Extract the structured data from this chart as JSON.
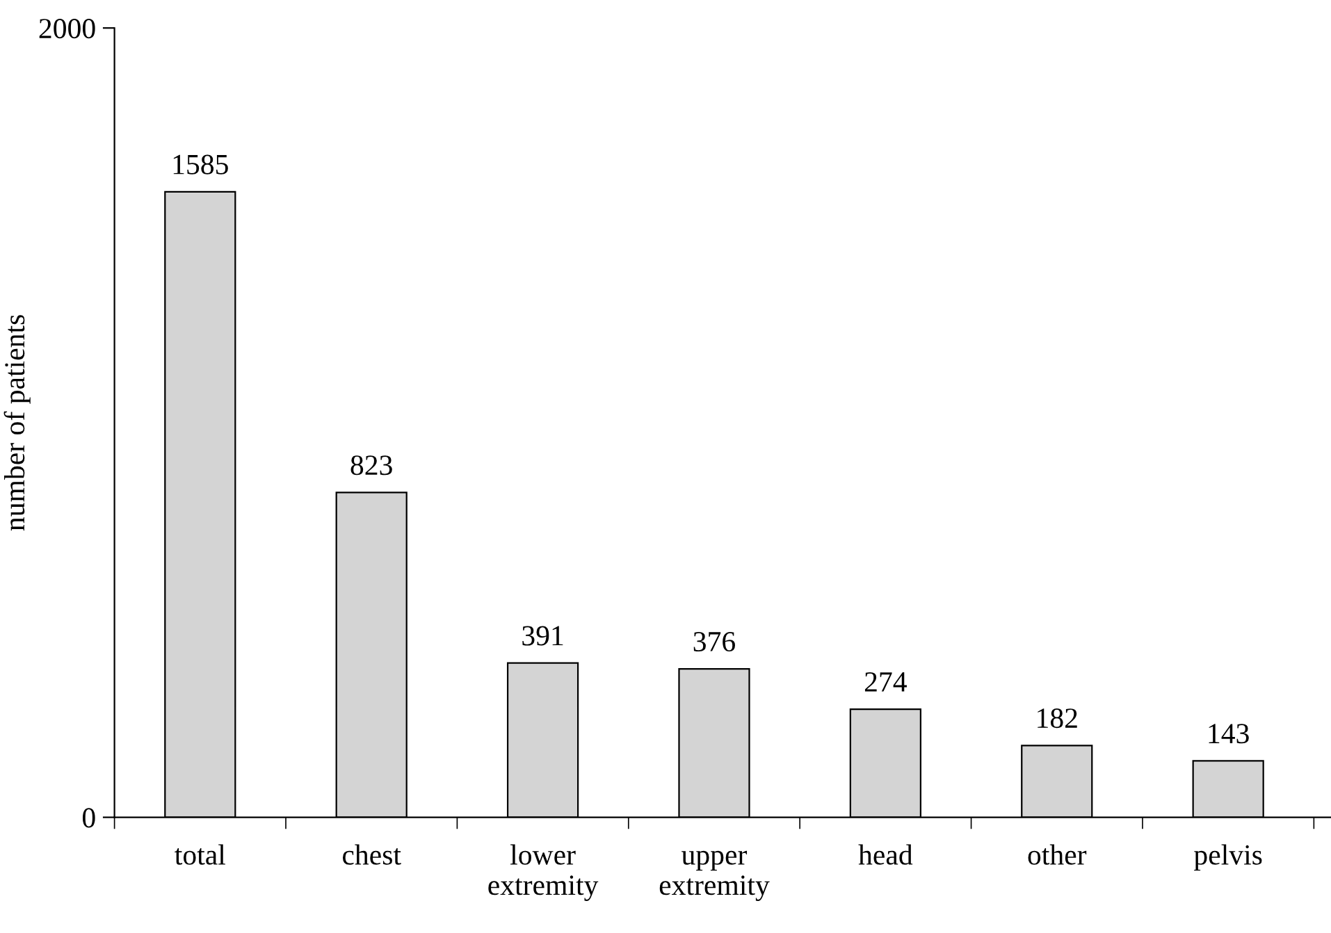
{
  "chart_data": {
    "type": "bar",
    "ylabel": "number of patients",
    "categories": [
      "total",
      "chest",
      "lower\nextremity",
      "upper\nextremity",
      "head",
      "other",
      "pelvis"
    ],
    "values": [
      1585,
      823,
      391,
      376,
      274,
      182,
      143
    ],
    "color": "#d4d4d4",
    "ylim": [
      0,
      2000
    ],
    "yticks": [
      0,
      2000
    ],
    "data_labels": true,
    "grid": false,
    "legend": false
  }
}
